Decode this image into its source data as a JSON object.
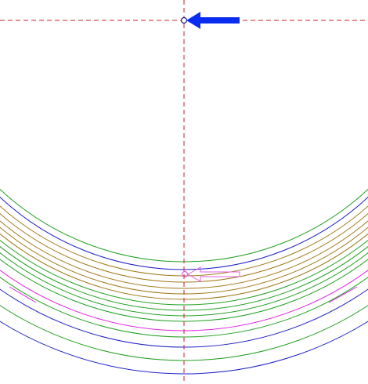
{
  "colors": {
    "background": "#ffffff",
    "crosshair": "#cc2222",
    "green": "#22a022",
    "blue": "#1c1cc8",
    "olive": "#a07818",
    "magenta": "#e020e0",
    "origin_arrow": "#0a2cf0",
    "origin_marker": "#1a1a80",
    "cursor_arrow": "#e060e0"
  },
  "icons": {
    "origin_marker": "circle-marker-icon",
    "origin_arrow": "arrow-left-icon",
    "cursor_marker": "circle-marker-icon",
    "cursor_arrow": "arrow-left-outline-icon"
  },
  "arcs": [
    {
      "color": "green"
    },
    {
      "color": "blue"
    },
    {
      "color": "olive"
    },
    {
      "color": "olive"
    },
    {
      "color": "olive"
    },
    {
      "color": "olive"
    },
    {
      "color": "olive"
    },
    {
      "color": "green"
    },
    {
      "color": "green"
    },
    {
      "color": "green"
    },
    {
      "color": "green"
    },
    {
      "color": "magenta"
    },
    {
      "color": "green"
    },
    {
      "color": "blue"
    },
    {
      "color": "green"
    },
    {
      "color": "blue"
    }
  ]
}
